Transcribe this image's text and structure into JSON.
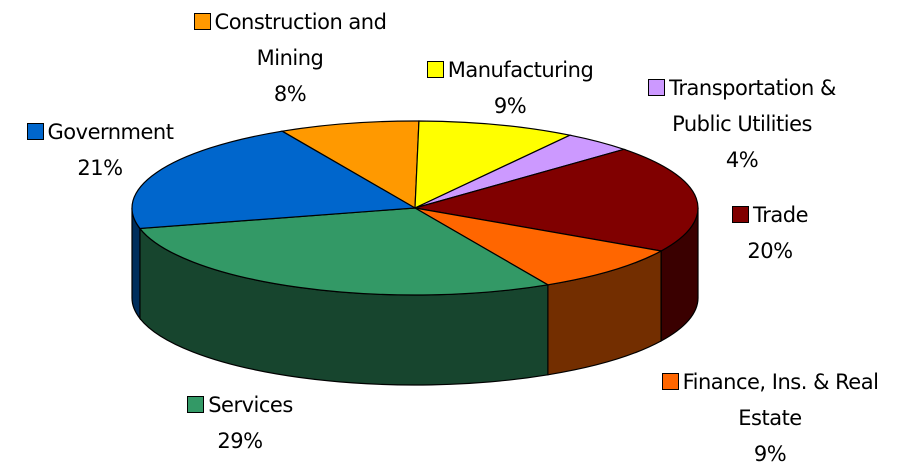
{
  "chart_data": {
    "type": "pie3d",
    "categories": [
      "Construction and Mining",
      "Manufacturing",
      "Transportation & Public Utilities",
      "Trade",
      "Finance, Ins. & Real Estate",
      "Services",
      "Government"
    ],
    "values": [
      8,
      9,
      4,
      20,
      9,
      29,
      21
    ],
    "value_labels": [
      "8%",
      "9%",
      "4%",
      "20%",
      "9%",
      "29%",
      "21%"
    ],
    "colors": [
      "#ff9900",
      "#ffff00",
      "#cc99ff",
      "#800000",
      "#ff6600",
      "#339966",
      "#0066cc"
    ]
  }
}
